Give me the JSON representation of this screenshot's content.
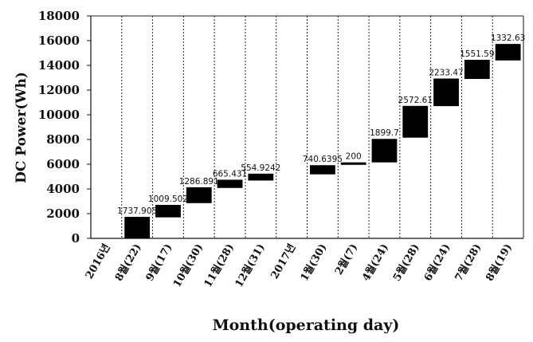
{
  "chart_data": {
    "type": "waterfall",
    "ylabel": "DC Power(Wh)",
    "xlabel": "Month(operating day)",
    "ylim": [
      0,
      18000
    ],
    "yticks": [
      "0",
      "2000",
      "4000",
      "6000",
      "8000",
      "10000",
      "12000",
      "14000",
      "16000",
      "18000"
    ],
    "grid": true,
    "categories": [
      "2016년",
      "8월(22)",
      "9월(17)",
      "10월(30)",
      "11월(28)",
      "12월(31)",
      "2017년",
      "1월(30)",
      "2월(7)",
      "4월(24)",
      "5월(28)",
      "6월(24)",
      "7월(28)",
      "8월(19)"
    ],
    "values": [
      null,
      1737.905,
      1009.502,
      1286.891,
      665.431,
      554.9242,
      null,
      740.6395,
      200,
      1899.7,
      2572.61,
      2233.47,
      1551.59,
      1332.63
    ],
    "value_labels": [
      "",
      "1737.905",
      "1009.502",
      "1286.891",
      "665.431",
      "554.9242",
      "",
      "740.6395",
      "200",
      "1899.7",
      "2572.61",
      "2233.47",
      "1551.59",
      "1332.63"
    ],
    "bases": [
      null,
      0,
      1700,
      2850,
      4080,
      4680,
      null,
      5180,
      5950,
      6150,
      8150,
      10700,
      12900,
      14400
    ],
    "colors": {
      "bar": "#000000",
      "grid": "#222222",
      "axis": "#111111"
    }
  }
}
